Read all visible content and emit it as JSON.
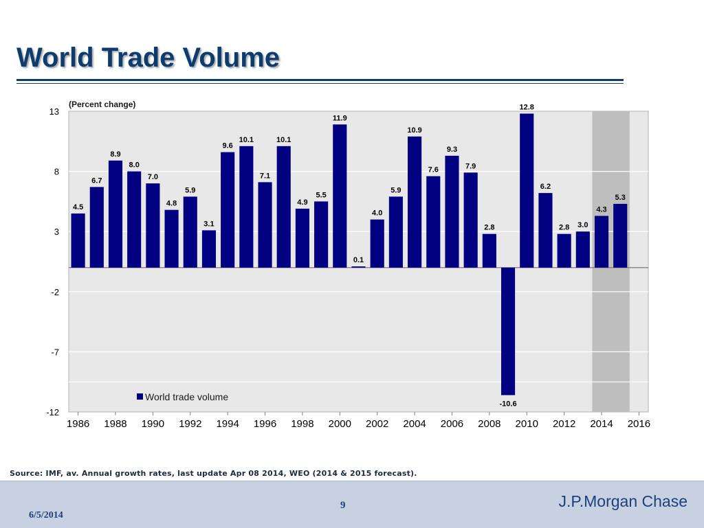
{
  "slide": {
    "title": "World Trade Volume",
    "source": "Source: IMF, av. Annual growth rates, last update Apr 08 2014, WEO (2014 & 2015 forecast)."
  },
  "footer": {
    "date": "6/5/2014",
    "page": "9",
    "brand": "J.P.Morgan Chase"
  },
  "colors": {
    "bar": "#000080",
    "plot_background": "#e8e8e8",
    "forecast_shade": "#bebebe",
    "title": "#0f3c6e",
    "footer_background": "#c7d1e2"
  },
  "chart_data": {
    "type": "bar",
    "annotation": "(Percent change)",
    "x": [
      1986,
      1987,
      1988,
      1989,
      1990,
      1991,
      1992,
      1993,
      1994,
      1995,
      1996,
      1997,
      1998,
      1999,
      2000,
      2001,
      2002,
      2003,
      2004,
      2005,
      2006,
      2007,
      2008,
      2009,
      2010,
      2011,
      2012,
      2013,
      2014,
      2015
    ],
    "series": [
      {
        "name": "World trade volume",
        "values": [
          4.5,
          6.7,
          8.9,
          8.0,
          7.0,
          4.8,
          5.9,
          3.1,
          9.6,
          10.1,
          7.1,
          10.1,
          4.9,
          5.5,
          11.9,
          0.1,
          4.0,
          5.9,
          10.9,
          7.6,
          9.3,
          7.9,
          2.8,
          -10.6,
          12.8,
          6.2,
          2.8,
          3.0,
          4.3,
          5.3
        ]
      }
    ],
    "data_labels": [
      "4.5",
      "6.7",
      "8.9",
      "8.0",
      "7.0",
      "4.8",
      "5.9",
      "3.1",
      "9.6",
      "10.1",
      "7.1",
      "10.1",
      "4.9",
      "5.5",
      "11.9",
      "0.1",
      "4.0",
      "5.9",
      "10.9",
      "7.6",
      "9.3",
      "7.9",
      "2.8",
      "-10.6",
      "12.8",
      "6.2",
      "2.8",
      "3.0",
      "4.3",
      "5.3"
    ],
    "forecast_years": [
      2014,
      2015
    ],
    "xlim": [
      1985.5,
      2016.5
    ],
    "ylim": [
      -12,
      13
    ],
    "y_ticks": [
      13,
      8,
      3,
      -2,
      -7,
      -12
    ],
    "x_ticks": [
      1986,
      1988,
      1990,
      1992,
      1994,
      1996,
      1998,
      2000,
      2002,
      2004,
      2006,
      2008,
      2010,
      2012,
      2014,
      2016
    ],
    "grid": true,
    "legend": "inside lower-left"
  }
}
